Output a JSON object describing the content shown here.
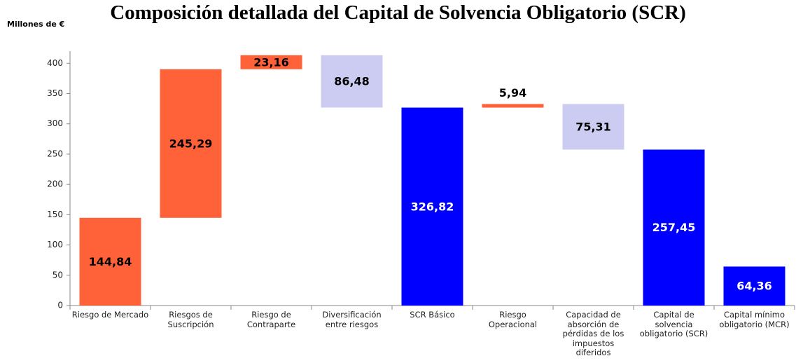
{
  "chart_data": {
    "type": "waterfall",
    "title": "Composición detallada del Capital de Solvencia Obligatorio (SCR)",
    "y_axis_label": "Millones de €",
    "categories": [
      "Riesgo de Mercado",
      "Riesgos de Suscripción",
      "Riesgo de Contraparte",
      "Diversificación entre riesgos",
      "SCR Básico",
      "Riesgo Operacional",
      "Capacidad de absorción de pérdidas de los impuestos diferidos",
      "Capital de solvencia obligatorio (SCR)",
      "Capital mínimo obligatorio (MCR)"
    ],
    "values": [
      144.84,
      245.29,
      23.16,
      86.48,
      326.82,
      5.94,
      75.31,
      257.45,
      64.36
    ],
    "value_labels": [
      "144,84",
      "245,29",
      "23,16",
      "86,48",
      "326,82",
      "5,94",
      "75,31",
      "257,45",
      "64,36"
    ],
    "kinds": [
      "increase",
      "increase",
      "increase",
      "decrease",
      "total",
      "increase",
      "decrease",
      "total",
      "total"
    ],
    "colors": {
      "increase": "#ff6138",
      "decrease": "#ccccf2",
      "total": "#0000ff"
    },
    "ylim": [
      0,
      420
    ],
    "yticks": [
      0,
      50,
      100,
      150,
      200,
      250,
      300,
      350,
      400
    ],
    "grid": false
  }
}
